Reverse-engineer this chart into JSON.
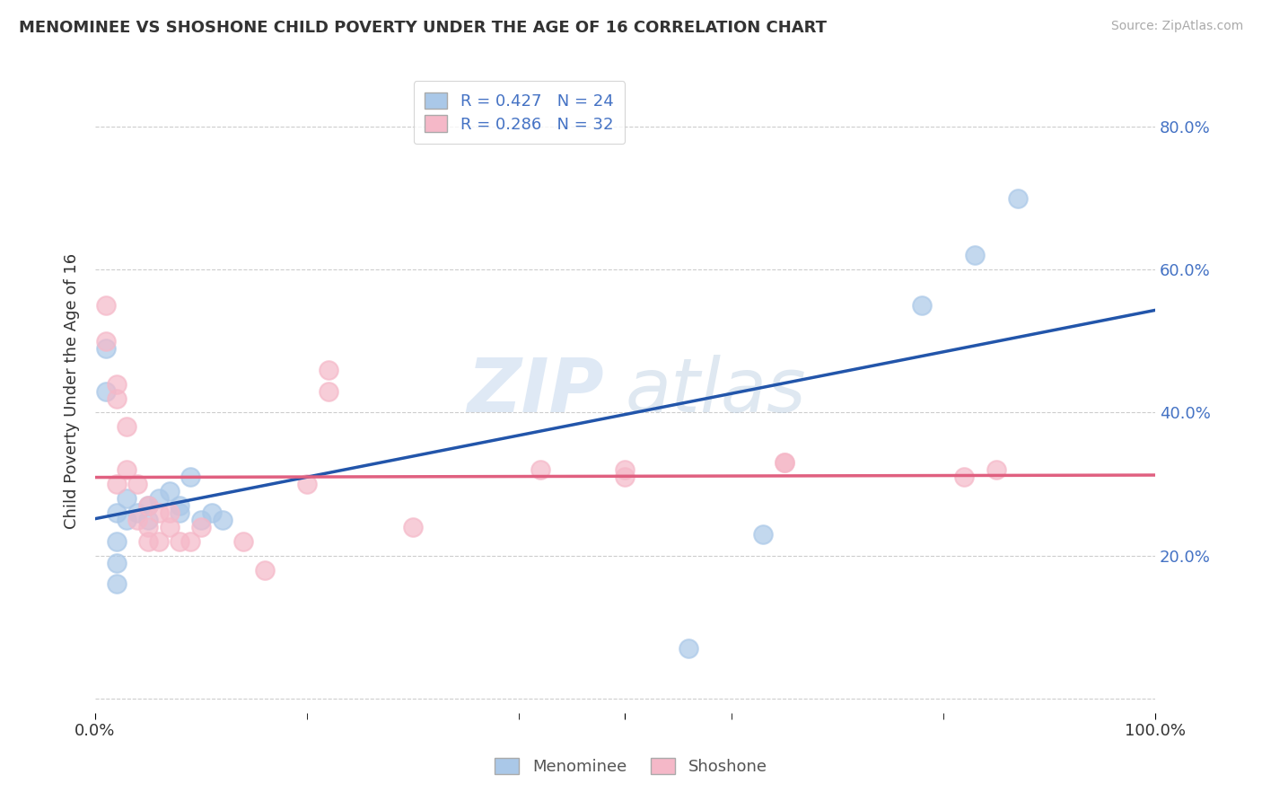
{
  "title": "MENOMINEE VS SHOSHONE CHILD POVERTY UNDER THE AGE OF 16 CORRELATION CHART",
  "source": "Source: ZipAtlas.com",
  "ylabel": "Child Poverty Under the Age of 16",
  "xlim": [
    0.0,
    1.0
  ],
  "ylim": [
    -0.02,
    0.88
  ],
  "yticks": [
    0.0,
    0.2,
    0.4,
    0.6,
    0.8
  ],
  "ytick_labels": [
    "",
    "20.0%",
    "40.0%",
    "60.0%",
    "80.0%"
  ],
  "menominee_color": "#aac8e8",
  "shoshone_color": "#f5b8c8",
  "menominee_line_color": "#2255aa",
  "shoshone_line_color": "#e06080",
  "R_menominee": 0.427,
  "N_menominee": 24,
  "R_shoshone": 0.286,
  "N_shoshone": 32,
  "watermark_zip": "ZIP",
  "watermark_atlas": "atlas",
  "menominee_x": [
    0.01,
    0.01,
    0.02,
    0.02,
    0.02,
    0.02,
    0.03,
    0.03,
    0.04,
    0.05,
    0.05,
    0.06,
    0.07,
    0.08,
    0.08,
    0.09,
    0.1,
    0.11,
    0.12,
    0.56,
    0.63,
    0.78,
    0.83,
    0.87
  ],
  "menominee_y": [
    0.49,
    0.43,
    0.16,
    0.26,
    0.22,
    0.19,
    0.28,
    0.25,
    0.26,
    0.27,
    0.25,
    0.28,
    0.29,
    0.26,
    0.27,
    0.31,
    0.25,
    0.26,
    0.25,
    0.07,
    0.23,
    0.55,
    0.62,
    0.7
  ],
  "shoshone_x": [
    0.01,
    0.01,
    0.02,
    0.02,
    0.02,
    0.03,
    0.03,
    0.04,
    0.04,
    0.05,
    0.05,
    0.05,
    0.06,
    0.06,
    0.07,
    0.07,
    0.08,
    0.09,
    0.1,
    0.14,
    0.16,
    0.2,
    0.22,
    0.22,
    0.3,
    0.42,
    0.5,
    0.5,
    0.65,
    0.65,
    0.82,
    0.85
  ],
  "shoshone_y": [
    0.55,
    0.5,
    0.44,
    0.42,
    0.3,
    0.32,
    0.38,
    0.3,
    0.25,
    0.27,
    0.24,
    0.22,
    0.26,
    0.22,
    0.26,
    0.24,
    0.22,
    0.22,
    0.24,
    0.22,
    0.18,
    0.3,
    0.46,
    0.43,
    0.24,
    0.32,
    0.31,
    0.32,
    0.33,
    0.33,
    0.31,
    0.32
  ],
  "background_color": "#ffffff",
  "grid_color": "#c8c8c8"
}
